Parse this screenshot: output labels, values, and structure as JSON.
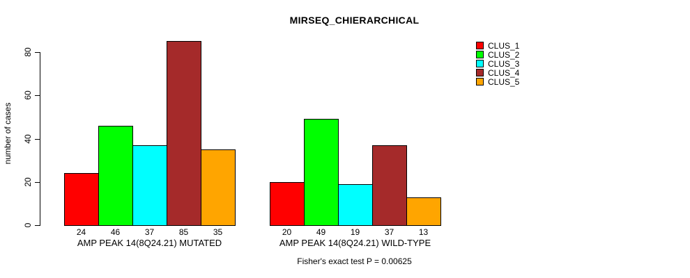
{
  "title": "MIRSEQ_CHIERARCHICAL",
  "y_axis": {
    "label": "number of cases",
    "tick_labels": [
      "0",
      "20",
      "40",
      "60",
      "80"
    ]
  },
  "footer": "Fisher's exact test P = 0.00625",
  "legend": {
    "position": "top-right",
    "items": [
      {
        "label": "CLUS_1",
        "color": "#FF0000"
      },
      {
        "label": "CLUS_2",
        "color": "#00FF00"
      },
      {
        "label": "CLUS_3",
        "color": "#00FFFF"
      },
      {
        "label": "CLUS_4",
        "color": "#A52A2A"
      },
      {
        "label": "CLUS_5",
        "color": "#FFA500"
      }
    ]
  },
  "chart_data": {
    "type": "bar",
    "title": "MIRSEQ_CHIERARCHICAL",
    "xlabel": "",
    "ylabel": "number of cases",
    "ylim": [
      0,
      88
    ],
    "yticks": [
      0,
      20,
      40,
      60,
      80
    ],
    "grid": false,
    "bar_value_labels": true,
    "categories": [
      "AMP PEAK 14(8Q24.21) MUTATED",
      "AMP PEAK 14(8Q24.21) WILD-TYPE"
    ],
    "series": [
      {
        "name": "CLUS_1",
        "color": "#FF0000",
        "values": [
          24,
          20
        ]
      },
      {
        "name": "CLUS_2",
        "color": "#00FF00",
        "values": [
          46,
          49
        ]
      },
      {
        "name": "CLUS_3",
        "color": "#00FFFF",
        "values": [
          37,
          19
        ]
      },
      {
        "name": "CLUS_4",
        "color": "#A52A2A",
        "values": [
          85,
          37
        ]
      },
      {
        "name": "CLUS_5",
        "color": "#FFA500",
        "values": [
          35,
          13
        ]
      }
    ],
    "legend_entries": [
      "CLUS_1",
      "CLUS_2",
      "CLUS_3",
      "CLUS_4",
      "CLUS_5"
    ],
    "annotation": "Fisher's exact test P = 0.00625"
  }
}
